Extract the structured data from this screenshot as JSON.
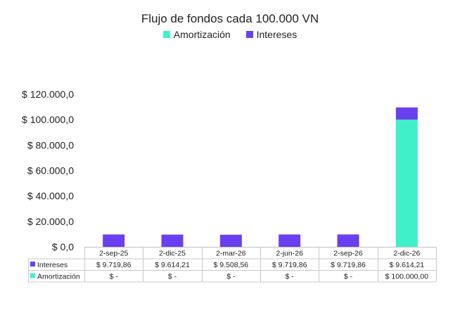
{
  "chart_data": {
    "type": "bar",
    "stacked": true,
    "title": "Flujo de fondos cada 100.000 VN",
    "categories": [
      "2-sep-25",
      "2-dic-25",
      "2-mar-26",
      "2-jun-26",
      "2-sep-26",
      "2-dic-26"
    ],
    "series": [
      {
        "name": "Amortización",
        "color": "#40f0c8",
        "values": [
          0,
          0,
          0,
          0,
          0,
          100000.0
        ],
        "labels": [
          "$ -",
          "$ -",
          "$ -",
          "$ -",
          "$ -",
          "$ 100.000,00"
        ]
      },
      {
        "name": "Intereses",
        "color": "#6a3ff0",
        "values": [
          9719.86,
          9614.21,
          9508.56,
          9719.86,
          9719.86,
          9614.21
        ],
        "labels": [
          "$ 9.719,86",
          "$ 9.614,21",
          "$ 9.508,56",
          "$ 9.719,86",
          "$ 9.719,86",
          "$ 9.614,21"
        ]
      }
    ],
    "ylim": [
      0,
      120000
    ],
    "y_ticks": [
      "$ 0,0",
      "$ 20.000,0",
      "$ 40.000,0",
      "$ 60.000,0",
      "$ 80.000,0",
      "$ 100.000,0",
      "$ 120.000,0"
    ],
    "legend": "top",
    "data_table": true,
    "table_row_order": [
      "Intereses",
      "Amortización"
    ],
    "grid": false
  }
}
